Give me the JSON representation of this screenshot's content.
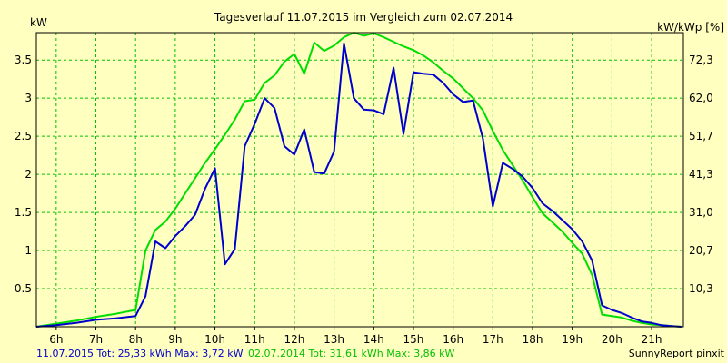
{
  "chart_data": {
    "type": "line",
    "title": "Tagesverlauf 11.07.2015 im Vergleich zum 02.07.2014",
    "ylabel_left": "kW",
    "ylabel_right": "kW/kWp [%]",
    "xlim": [
      5.5,
      21.8
    ],
    "ylim": [
      0,
      3.86
    ],
    "x_ticks": [
      6,
      7,
      8,
      9,
      10,
      11,
      12,
      13,
      14,
      15,
      16,
      17,
      18,
      19,
      20,
      21
    ],
    "x_tick_labels": [
      "6h",
      "7h",
      "8h",
      "9h",
      "10h",
      "11h",
      "12h",
      "13h",
      "14h",
      "15h",
      "16h",
      "17h",
      "18h",
      "19h",
      "20h",
      "21h"
    ],
    "y_ticks_left": [
      0.5,
      1,
      1.5,
      2,
      2.5,
      3,
      3.5
    ],
    "y_tick_labels_left": [
      "0.5",
      "1",
      "1.5",
      "2",
      "2.5",
      "3",
      "3.5"
    ],
    "y_ticks_right": [
      0.5,
      1,
      1.5,
      2,
      2.5,
      3,
      3.5
    ],
    "y_tick_labels_right": [
      "10,3",
      "20,7",
      "31,0",
      "41,3",
      "51,7",
      "62,0",
      "72,3"
    ],
    "grid": true,
    "colors": {
      "background": "#ffffc0",
      "grid": "#00c000",
      "frame": "#000000"
    },
    "series": [
      {
        "name": "11.07.2015",
        "color": "#0000cc",
        "x": [
          5.5,
          6.0,
          6.5,
          7.0,
          7.5,
          8.0,
          8.25,
          8.5,
          8.75,
          9.0,
          9.25,
          9.5,
          9.75,
          10.0,
          10.25,
          10.5,
          10.75,
          11.0,
          11.25,
          11.5,
          11.75,
          12.0,
          12.25,
          12.5,
          12.75,
          13.0,
          13.25,
          13.5,
          13.75,
          14.0,
          14.25,
          14.5,
          14.75,
          15.0,
          15.25,
          15.5,
          15.75,
          16.0,
          16.25,
          16.5,
          16.75,
          17.0,
          17.25,
          17.5,
          17.75,
          18.0,
          18.25,
          18.5,
          18.75,
          19.0,
          19.25,
          19.5,
          19.75,
          20.0,
          20.25,
          20.5,
          20.75,
          21.0,
          21.25,
          21.5,
          21.75
        ],
        "y": [
          0.0,
          0.02,
          0.05,
          0.09,
          0.11,
          0.14,
          0.4,
          1.12,
          1.03,
          1.19,
          1.32,
          1.47,
          1.81,
          2.08,
          0.82,
          1.02,
          2.37,
          2.66,
          3.0,
          2.87,
          2.37,
          2.26,
          2.59,
          2.03,
          2.01,
          2.3,
          3.72,
          3.0,
          2.85,
          2.84,
          2.79,
          3.4,
          2.53,
          3.34,
          3.32,
          3.31,
          3.2,
          3.05,
          2.95,
          2.97,
          2.47,
          1.58,
          2.15,
          2.07,
          1.97,
          1.82,
          1.62,
          1.52,
          1.4,
          1.28,
          1.12,
          0.87,
          0.28,
          0.22,
          0.18,
          0.12,
          0.07,
          0.05,
          0.02,
          0.01,
          0.0
        ]
      },
      {
        "name": "02.07.2014",
        "color": "#00dd00",
        "x": [
          5.5,
          6.0,
          6.5,
          7.0,
          7.5,
          8.0,
          8.25,
          8.5,
          8.75,
          9.0,
          9.25,
          9.5,
          9.75,
          10.0,
          10.25,
          10.5,
          10.75,
          11.0,
          11.25,
          11.5,
          11.75,
          12.0,
          12.25,
          12.5,
          12.75,
          13.0,
          13.25,
          13.5,
          13.75,
          14.0,
          14.25,
          14.5,
          14.75,
          15.0,
          15.25,
          15.5,
          15.75,
          16.0,
          16.25,
          16.5,
          16.75,
          17.0,
          17.25,
          17.5,
          17.75,
          18.0,
          18.25,
          18.5,
          18.75,
          19.0,
          19.25,
          19.5,
          19.75,
          20.0,
          20.25,
          20.5,
          20.75,
          21.0,
          21.25,
          21.5,
          21.75
        ],
        "y": [
          0.0,
          0.04,
          0.08,
          0.13,
          0.17,
          0.22,
          1.0,
          1.27,
          1.38,
          1.55,
          1.75,
          1.95,
          2.15,
          2.33,
          2.52,
          2.72,
          2.96,
          2.98,
          3.2,
          3.3,
          3.48,
          3.58,
          3.32,
          3.73,
          3.62,
          3.69,
          3.8,
          3.86,
          3.82,
          3.85,
          3.8,
          3.74,
          3.68,
          3.63,
          3.56,
          3.47,
          3.36,
          3.26,
          3.13,
          3.0,
          2.84,
          2.57,
          2.32,
          2.12,
          1.92,
          1.7,
          1.49,
          1.37,
          1.25,
          1.1,
          0.96,
          0.68,
          0.16,
          0.14,
          0.12,
          0.08,
          0.05,
          0.03,
          0.02,
          0.01,
          0.0
        ]
      }
    ],
    "legend_text": {
      "s1": "11.07.2015 Tot: 25,33 kWh Max: 3,72 kW",
      "s2": "02.07.2014 Tot: 31,61 kWh Max: 3,86 kW",
      "credit": "SunnyReport pinxit"
    }
  }
}
